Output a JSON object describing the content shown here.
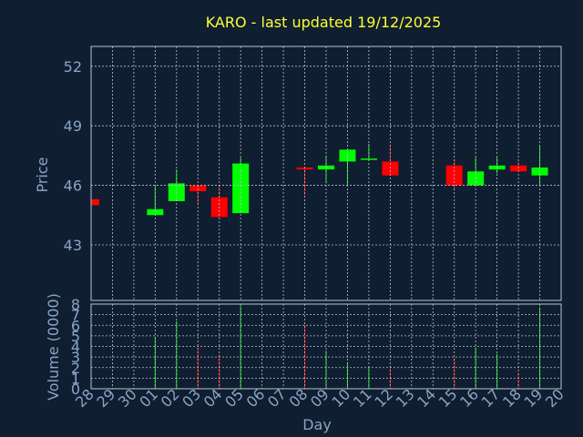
{
  "chart_data": {
    "type": "candlestick",
    "title": "KARO - last updated 19/12/2025",
    "xlabel": "Day",
    "ylabel": "Price",
    "y2label": "Volume (0000)",
    "categories": [
      "28",
      "29",
      "30",
      "01",
      "02",
      "03",
      "04",
      "05",
      "06",
      "07",
      "08",
      "09",
      "10",
      "11",
      "12",
      "13",
      "14",
      "15",
      "16",
      "17",
      "18",
      "19",
      "20"
    ],
    "open": [
      45.3,
      null,
      null,
      44.5,
      45.2,
      46.0,
      45.4,
      44.6,
      null,
      null,
      46.9,
      46.8,
      47.2,
      47.3,
      47.2,
      null,
      null,
      47.0,
      46.0,
      46.8,
      47.0,
      46.5,
      null
    ],
    "high": [
      45.3,
      null,
      null,
      46.0,
      46.8,
      46.0,
      46.0,
      47.4,
      null,
      null,
      46.9,
      47.5,
      47.8,
      48.1,
      48.0,
      null,
      null,
      47.3,
      47.4,
      47.4,
      47.2,
      48.0,
      null
    ],
    "low": [
      45.0,
      null,
      null,
      44.5,
      45.2,
      45.0,
      44.4,
      44.6,
      null,
      null,
      45.5,
      46.1,
      46.0,
      47.3,
      46.5,
      null,
      null,
      45.8,
      46.0,
      46.6,
      46.7,
      46.0,
      null
    ],
    "close": [
      45.0,
      null,
      null,
      44.8,
      46.1,
      45.7,
      44.4,
      47.1,
      null,
      null,
      46.8,
      47.0,
      47.8,
      47.35,
      46.5,
      null,
      null,
      46.0,
      46.7,
      47.0,
      46.7,
      46.9,
      null
    ],
    "volume": [
      null,
      null,
      null,
      4.9,
      6.4,
      3.9,
      3.2,
      7.8,
      null,
      null,
      6.1,
      3.6,
      2.5,
      2.1,
      2.2,
      null,
      null,
      2.9,
      3.9,
      3.3,
      1.5,
      7.7,
      null
    ],
    "up_color": "#00ff00",
    "down_color": "#ff0000",
    "ylim": [
      40.2,
      53.0
    ],
    "yticks": [
      43,
      46,
      49,
      52
    ],
    "y2lim": [
      0,
      8
    ],
    "y2ticks": [
      0,
      1,
      2,
      3,
      4,
      5,
      6,
      7,
      8
    ],
    "grid": true
  }
}
